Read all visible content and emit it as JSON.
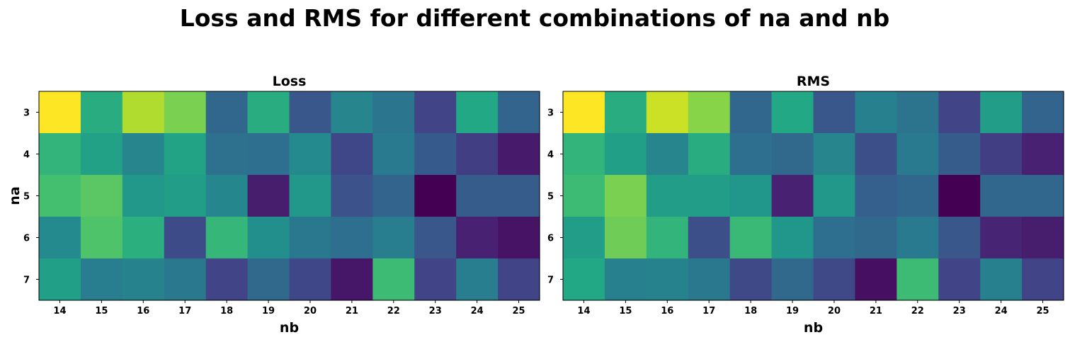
{
  "figure": {
    "title": "Loss and RMS for different combinations of na and nb"
  },
  "chart_data": [
    {
      "type": "heatmap",
      "title": "Loss",
      "xlabel": "nb",
      "ylabel": "na",
      "x": [
        "14",
        "15",
        "16",
        "17",
        "18",
        "19",
        "20",
        "21",
        "22",
        "23",
        "24",
        "25"
      ],
      "y": [
        "3",
        "4",
        "5",
        "6",
        "7"
      ],
      "colormap": "viridis",
      "values": [
        [
          1.0,
          0.62,
          0.88,
          0.8,
          0.33,
          0.62,
          0.27,
          0.45,
          0.39,
          0.2,
          0.6,
          0.32
        ],
        [
          0.65,
          0.57,
          0.45,
          0.58,
          0.37,
          0.36,
          0.47,
          0.21,
          0.41,
          0.28,
          0.18,
          0.07
        ],
        [
          0.7,
          0.74,
          0.53,
          0.55,
          0.46,
          0.08,
          0.53,
          0.25,
          0.32,
          0.0,
          0.29,
          0.29
        ],
        [
          0.47,
          0.72,
          0.63,
          0.23,
          0.66,
          0.49,
          0.4,
          0.36,
          0.42,
          0.27,
          0.09,
          0.05
        ],
        [
          0.56,
          0.42,
          0.44,
          0.4,
          0.2,
          0.34,
          0.21,
          0.06,
          0.68,
          0.2,
          0.42,
          0.2
        ]
      ]
    },
    {
      "type": "heatmap",
      "title": "RMS",
      "xlabel": "nb",
      "ylabel": "",
      "x": [
        "14",
        "15",
        "16",
        "17",
        "18",
        "19",
        "20",
        "21",
        "22",
        "23",
        "24",
        "25"
      ],
      "y": [
        "3",
        "4",
        "5",
        "6",
        "7"
      ],
      "colormap": "viridis",
      "values": [
        [
          1.0,
          0.62,
          0.92,
          0.82,
          0.33,
          0.6,
          0.27,
          0.43,
          0.38,
          0.2,
          0.55,
          0.32
        ],
        [
          0.65,
          0.56,
          0.45,
          0.62,
          0.36,
          0.34,
          0.45,
          0.24,
          0.41,
          0.29,
          0.18,
          0.09
        ],
        [
          0.68,
          0.8,
          0.55,
          0.55,
          0.52,
          0.09,
          0.53,
          0.3,
          0.33,
          0.0,
          0.33,
          0.33
        ],
        [
          0.55,
          0.78,
          0.65,
          0.24,
          0.67,
          0.52,
          0.36,
          0.34,
          0.41,
          0.27,
          0.1,
          0.08
        ],
        [
          0.6,
          0.43,
          0.44,
          0.4,
          0.22,
          0.34,
          0.22,
          0.04,
          0.68,
          0.2,
          0.43,
          0.2
        ]
      ]
    }
  ]
}
